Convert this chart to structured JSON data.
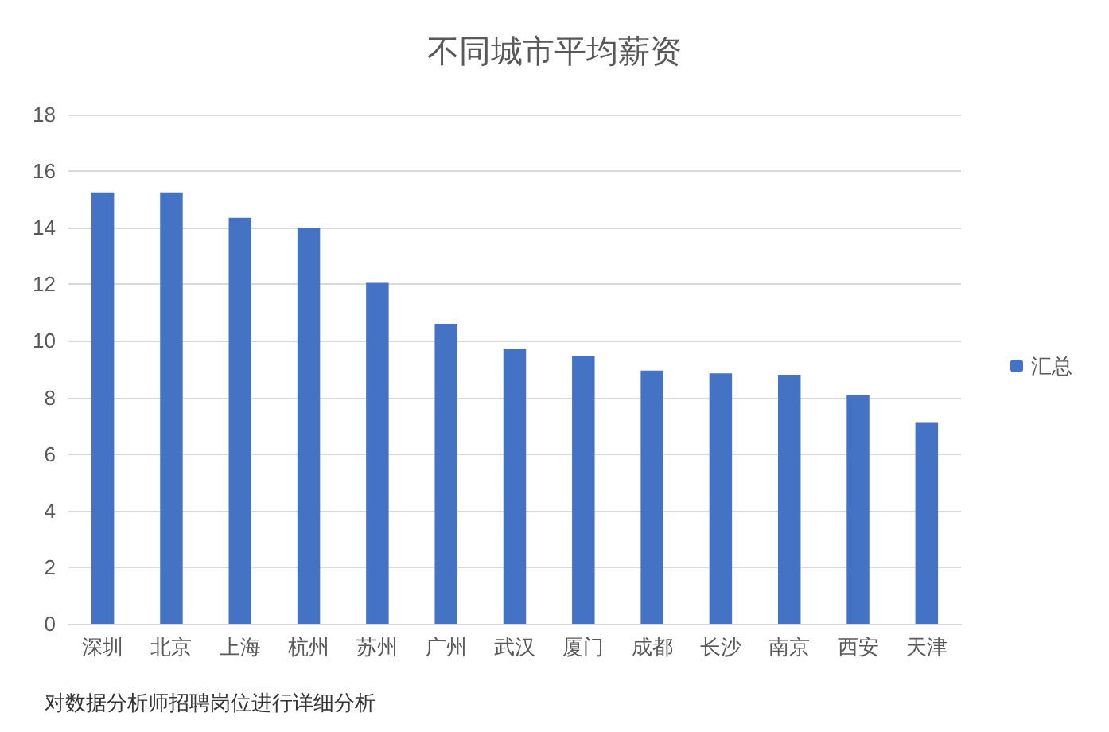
{
  "chart_data": {
    "type": "bar",
    "title": "不同城市平均薪资",
    "categories": [
      "深圳",
      "北京",
      "上海",
      "杭州",
      "苏州",
      "广州",
      "武汉",
      "厦门",
      "成都",
      "长沙",
      "南京",
      "西安",
      "天津"
    ],
    "series": [
      {
        "name": "汇总",
        "color": "#4472c4",
        "values": [
          15.25,
          15.25,
          14.35,
          14.0,
          12.05,
          10.6,
          9.7,
          9.45,
          8.95,
          8.85,
          8.8,
          8.1,
          7.1
        ]
      }
    ],
    "ylim": [
      0,
      18
    ],
    "yticks": [
      0,
      2,
      4,
      6,
      8,
      10,
      12,
      14,
      16,
      18
    ],
    "grid": "y",
    "legend": "right",
    "annotations": [
      "对数据分析师招聘岗位进行详细分析"
    ]
  }
}
